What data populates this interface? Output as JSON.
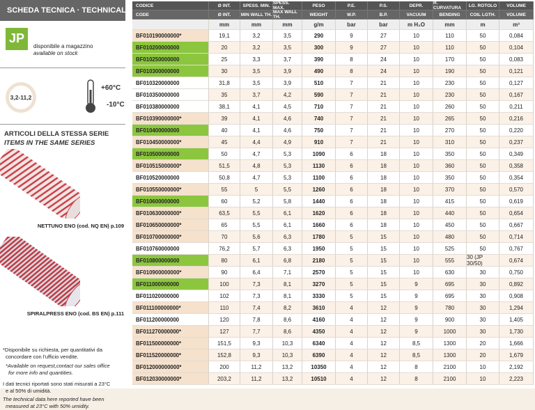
{
  "header": {
    "title": "SCHEDA TECNICA · TECHNICAL DATA"
  },
  "stock": {
    "logo": "JP",
    "label_it": "disponibile a magazzino",
    "label_en": "available on stock"
  },
  "specs": {
    "range": "3,2-11,2",
    "temp_max": "+60°C",
    "temp_min": "-10°C"
  },
  "series": {
    "title_it": "ARTICOLI DELLA STESSA SERIE",
    "title_en": "ITEMS IN THE SAME SERIES",
    "items": [
      {
        "label": "NETTUNO ENO (cod. NQ EN) p.109"
      },
      {
        "label": "SPIRALPRESS ENO (cod. BS EN) p.111"
      }
    ]
  },
  "notes": {
    "request_it": [
      "*Disponibile su richiesta, per quantitativi da",
      "concordare con l'ufficio vendite."
    ],
    "request_en": [
      "*Available on request,contact our sales office",
      "for more info and quantities."
    ],
    "conditions_it": [
      "I dati tecnici riportati sono stati misurati a 23°C",
      "e al 50% di umidità."
    ],
    "conditions_en": [
      "The technical data here reported have been",
      "measured at 23°C with 50% umidity."
    ]
  },
  "table": {
    "header_it": [
      "CODICE",
      "Ø INT.",
      "SPESS. MIN.",
      "SPESS. MAX.",
      "PESO",
      "P.E.",
      "P.S.",
      "DEPR.",
      "R. CURVATURA",
      "LG. ROTOLO",
      "VOLUME"
    ],
    "header_en": [
      "CODE",
      "Ø INT.",
      "MIN WALL TH.",
      "MAX WALL TH.",
      "WEIGHT",
      "W.P.",
      "B.P.",
      "VACUUM",
      "BENDING",
      "COIL LGTH.",
      "VOLUME"
    ],
    "units": [
      "mm",
      "mm",
      "mm",
      "g/m",
      "bar",
      "bar",
      "m H₂O",
      "mm",
      "m",
      "m³"
    ],
    "code_colors": [
      "#f5e1cc",
      "#8cc63e",
      "#8cc63e",
      "#8cc63e",
      "#ffffff",
      "#ffffff",
      "#ffffff",
      "#f5e1cc",
      "#8cc63e",
      "#f5e1cc",
      "#8cc63e",
      "#f5e1cc",
      "#ffffff",
      "#f5e1cc",
      "#8cc63e",
      "#f5e1cc",
      "#f5e1cc",
      "#f5e1cc",
      "#ffffff",
      "#8cc63e",
      "#f5e1cc",
      "#8cc63e",
      "#ffffff",
      "#f5e1cc",
      "#ffffff",
      "#f5e1cc",
      "#f5e1cc",
      "#f5e1cc",
      "#f5e1cc",
      "#f5e1cc"
    ],
    "rows": [
      [
        "BF010190000000*",
        "19,1",
        "3,2",
        "3,5",
        "290",
        "9",
        "27",
        "10",
        "110",
        "50",
        "0,084"
      ],
      [
        "BF010200000000",
        "20",
        "3,2",
        "3,5",
        "300",
        "9",
        "27",
        "10",
        "110",
        "50",
        "0,104"
      ],
      [
        "BF010250000000",
        "25",
        "3,3",
        "3,7",
        "390",
        "8",
        "24",
        "10",
        "170",
        "50",
        "0,083"
      ],
      [
        "BF010300000000",
        "30",
        "3,5",
        "3,9",
        "490",
        "8",
        "24",
        "10",
        "190",
        "50",
        "0,121"
      ],
      [
        "BF010320000000",
        "31,8",
        "3,5",
        "3,9",
        "510",
        "7",
        "21",
        "10",
        "230",
        "50",
        "0,127"
      ],
      [
        "BF010350000000",
        "35",
        "3,7",
        "4,2",
        "590",
        "7",
        "21",
        "10",
        "230",
        "50",
        "0,167"
      ],
      [
        "BF010380000000",
        "38,1",
        "4,1",
        "4,5",
        "710",
        "7",
        "21",
        "10",
        "260",
        "50",
        "0,211"
      ],
      [
        "BF010390000000*",
        "39",
        "4,1",
        "4,6",
        "740",
        "7",
        "21",
        "10",
        "265",
        "50",
        "0,216"
      ],
      [
        "BF010400000000",
        "40",
        "4,1",
        "4,6",
        "750",
        "7",
        "21",
        "10",
        "270",
        "50",
        "0,220"
      ],
      [
        "BF010450000000*",
        "45",
        "4,4",
        "4,9",
        "910",
        "7",
        "21",
        "10",
        "310",
        "50",
        "0,237"
      ],
      [
        "BF010500000000",
        "50",
        "4,7",
        "5,3",
        "1090",
        "6",
        "18",
        "10",
        "350",
        "50",
        "0,349"
      ],
      [
        "BF010515000000*",
        "51,5",
        "4,8",
        "5,3",
        "1130",
        "6",
        "18",
        "10",
        "360",
        "50",
        "0,358"
      ],
      [
        "BF010520000000",
        "50,8",
        "4,7",
        "5,3",
        "1100",
        "6",
        "18",
        "10",
        "350",
        "50",
        "0,354"
      ],
      [
        "BF010550000000*",
        "55",
        "5",
        "5,5",
        "1260",
        "6",
        "18",
        "10",
        "370",
        "50",
        "0,570"
      ],
      [
        "BF010600000000",
        "60",
        "5,2",
        "5,8",
        "1440",
        "6",
        "18",
        "10",
        "415",
        "50",
        "0,619"
      ],
      [
        "BF010630000000*",
        "63,5",
        "5,5",
        "6,1",
        "1620",
        "6",
        "18",
        "10",
        "440",
        "50",
        "0,654"
      ],
      [
        "BF010650000000*",
        "65",
        "5,5",
        "6,1",
        "1660",
        "6",
        "18",
        "10",
        "450",
        "50",
        "0,667"
      ],
      [
        "BF010700000000*",
        "70",
        "5,6",
        "6,3",
        "1780",
        "5",
        "15",
        "10",
        "480",
        "50",
        "0,714"
      ],
      [
        "BF010760000000",
        "76,2",
        "5,7",
        "6,3",
        "1950",
        "5",
        "15",
        "10",
        "525",
        "50",
        "0,767"
      ],
      [
        "BF010800000000",
        "80",
        "6,1",
        "6,8",
        "2180",
        "5",
        "15",
        "10",
        "555",
        "30 (JP 30/50)",
        "0,674"
      ],
      [
        "BF010900000000*",
        "90",
        "6,4",
        "7,1",
        "2570",
        "5",
        "15",
        "10",
        "630",
        "30",
        "0,750"
      ],
      [
        "BF011000000000",
        "100",
        "7,3",
        "8,1",
        "3270",
        "5",
        "15",
        "9",
        "695",
        "30",
        "0,892"
      ],
      [
        "BF011020000000",
        "102",
        "7,3",
        "8,1",
        "3330",
        "5",
        "15",
        "9",
        "695",
        "30",
        "0,908"
      ],
      [
        "BF011100000000*",
        "110",
        "7,4",
        "8,2",
        "3610",
        "4",
        "12",
        "9",
        "780",
        "30",
        "1,294"
      ],
      [
        "BF011200000000",
        "120",
        "7,8",
        "8,6",
        "4160",
        "4",
        "12",
        "9",
        "900",
        "30",
        "1,405"
      ],
      [
        "BF011270000000*",
        "127",
        "7,7",
        "8,6",
        "4350",
        "4",
        "12",
        "9",
        "1000",
        "30",
        "1,730"
      ],
      [
        "BF011500000000*",
        "151,5",
        "9,3",
        "10,3",
        "6340",
        "4",
        "12",
        "8,5",
        "1300",
        "20",
        "1,666"
      ],
      [
        "BF011520000000*",
        "152,8",
        "9,3",
        "10,3",
        "6390",
        "4",
        "12",
        "8,5",
        "1300",
        "20",
        "1,679"
      ],
      [
        "BF012000000000*",
        "200",
        "11,2",
        "13,2",
        "10350",
        "4",
        "12",
        "8",
        "2100",
        "10",
        "2,192"
      ],
      [
        "BF012030000000*",
        "203,2",
        "11,2",
        "13,2",
        "10510",
        "4",
        "12",
        "8",
        "2100",
        "10",
        "2,223"
      ]
    ]
  }
}
